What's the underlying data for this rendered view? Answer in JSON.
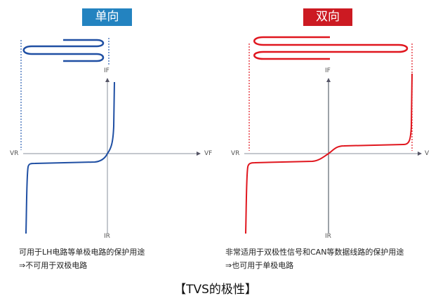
{
  "unidirectional": {
    "label": "单向",
    "color": "#2383c0",
    "curve_color": "#1f4fa3",
    "axes": {
      "vr": "VR",
      "vf": "VF",
      "if": "IF",
      "ir": "IR"
    },
    "note_line1": "可用于LH电路等单极电路的保护用途",
    "note_line2": "⇒不可用于双极电路"
  },
  "bidirectional": {
    "label": "双向",
    "color": "#cc1a22",
    "curve_color": "#e0161e",
    "axes": {
      "vr": "VR",
      "vf": "V",
      "if": "IF",
      "ir": "IR"
    },
    "note_line1": "非常适用于双极性信号和CAN等数据线路的保护用途",
    "note_line2": "⇒也可用于单极电路"
  },
  "title": "【TVS的极性】"
}
